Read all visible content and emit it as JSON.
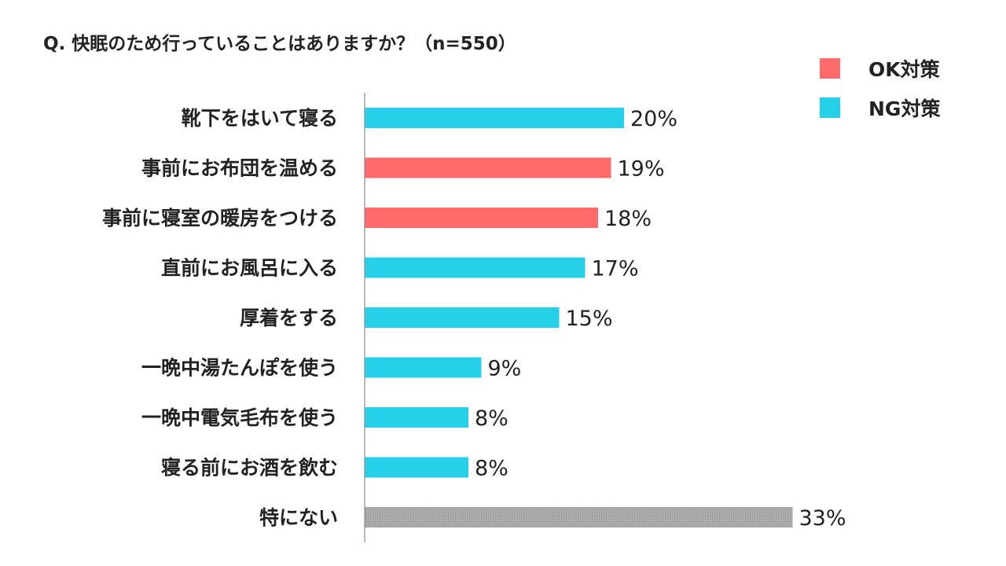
{
  "chart_data": {
    "type": "bar",
    "orientation": "horizontal",
    "title": "Q. 快眠のため行っていることはありますか？（n=550）",
    "legend": {
      "placement": "top-right",
      "entries": [
        {
          "name": "OK対策",
          "color": "#ff6b6b"
        },
        {
          "name": "NG対策",
          "color": "#26d0e8"
        }
      ]
    },
    "categories": [
      "靴下をはいて寝る",
      "事前にお布団を温める",
      "事前に寝室の暖房をつける",
      "直前にお風呂に入る",
      "厚着をする",
      "一晩中湯たんぽを使う",
      "一晩中電気毛布を使う",
      "寝る前にお酒を飲む",
      "特にない"
    ],
    "values": [
      20,
      19,
      18,
      17,
      15,
      9,
      8,
      8,
      33
    ],
    "value_labels": [
      "20%",
      "19%",
      "18%",
      "17%",
      "15%",
      "9%",
      "8%",
      "8%",
      "33%"
    ],
    "groups": [
      "NG",
      "OK",
      "OK",
      "NG",
      "NG",
      "NG",
      "NG",
      "NG",
      "none"
    ],
    "colors": {
      "OK": "#ff6b6b",
      "NG": "#26d0e8",
      "none": "#a8a8a8",
      "axis": "#888888"
    },
    "xlim": [
      0,
      35
    ],
    "grid": false,
    "unit": "%"
  }
}
